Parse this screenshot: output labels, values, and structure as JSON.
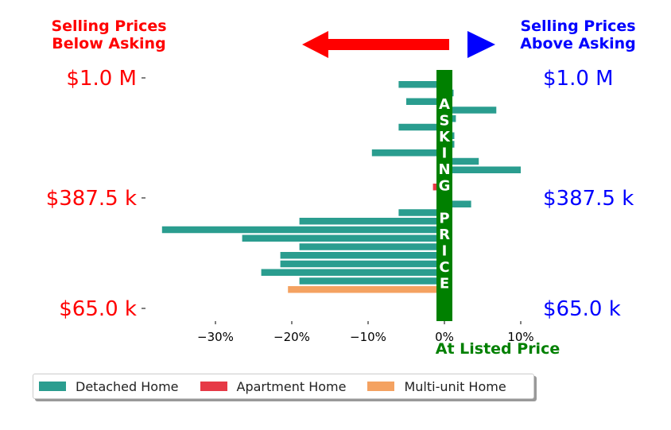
{
  "headers": {
    "left": [
      "Selling Prices",
      "Below Asking"
    ],
    "right": [
      "Selling Prices",
      "Above Asking"
    ],
    "bottom_center": "At Listed Price"
  },
  "asking_band_text": "ASKING PRICE",
  "colors": {
    "left_text": "#ff0000",
    "right_text": "#0000ff",
    "band": "#008000",
    "left_arrow": "#ff0000",
    "right_arrow": "#0000ff"
  },
  "chart_data": {
    "type": "bar",
    "orientation": "horizontal",
    "xlim": [
      -40,
      12
    ],
    "x_ticks": [
      -30,
      -20,
      -10,
      0,
      10
    ],
    "x_tick_labels": [
      "−30%",
      "−20%",
      "−10%",
      "0%",
      "10%"
    ],
    "y_labels_left": [
      "$1.0 M",
      "$387.5 k",
      "$65.0 k"
    ],
    "y_labels_right": [
      "$1.0 M",
      "$387.5 k",
      "$65.0 k"
    ],
    "legend": [
      {
        "label": "Detached Home",
        "color": "#2a9d8f"
      },
      {
        "label": "Apartment Home",
        "color": "#e63946"
      },
      {
        "label": "Multi-unit Home",
        "color": "#f4a261"
      }
    ],
    "bars": [
      {
        "value": -6,
        "type": "Detached Home"
      },
      {
        "value": 1.2,
        "type": "Detached Home"
      },
      {
        "value": -5,
        "type": "Detached Home"
      },
      {
        "value": 6.8,
        "type": "Detached Home"
      },
      {
        "value": 1.5,
        "type": "Detached Home"
      },
      {
        "value": -6,
        "type": "Detached Home"
      },
      {
        "value": 1.3,
        "type": "Detached Home"
      },
      {
        "value": 1.3,
        "type": "Detached Home"
      },
      {
        "value": -9.5,
        "type": "Detached Home"
      },
      {
        "value": 4.5,
        "type": "Detached Home"
      },
      {
        "value": 10,
        "type": "Detached Home"
      },
      {
        "value": 0.5,
        "type": "Detached Home"
      },
      {
        "value": -1.5,
        "type": "Apartment Home"
      },
      {
        "value": 0.5,
        "type": "Detached Home"
      },
      {
        "value": 3.5,
        "type": "Detached Home"
      },
      {
        "value": -6,
        "type": "Detached Home"
      },
      {
        "value": -19,
        "type": "Detached Home"
      },
      {
        "value": -37,
        "type": "Detached Home"
      },
      {
        "value": -26.5,
        "type": "Detached Home"
      },
      {
        "value": -19,
        "type": "Detached Home"
      },
      {
        "value": -21.5,
        "type": "Detached Home"
      },
      {
        "value": -21.5,
        "type": "Detached Home"
      },
      {
        "value": -24,
        "type": "Detached Home"
      },
      {
        "value": -19,
        "type": "Detached Home"
      },
      {
        "value": -20.5,
        "type": "Multi-unit Home"
      }
    ]
  }
}
